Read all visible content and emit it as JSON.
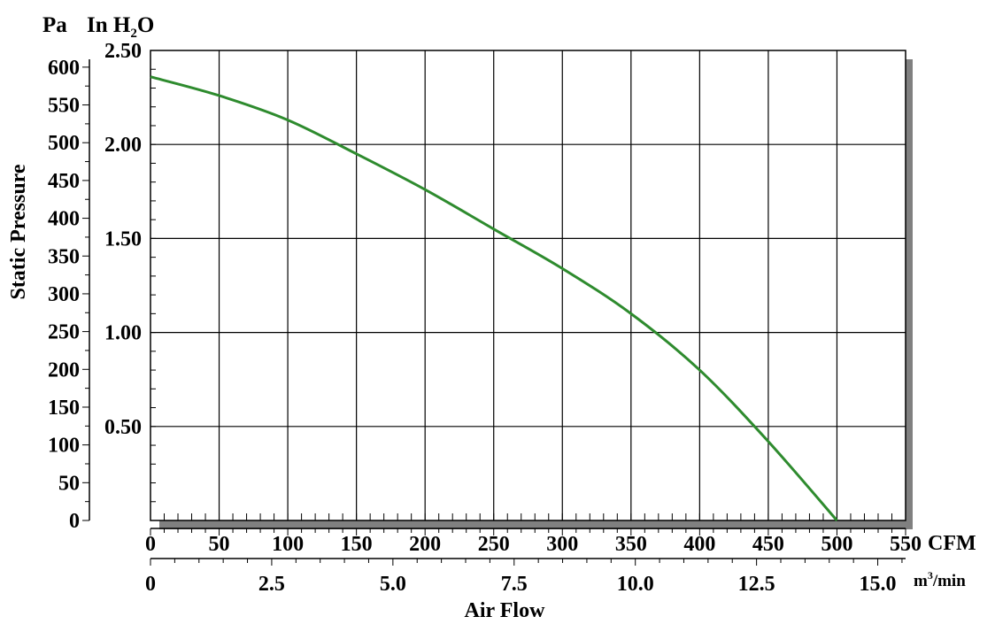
{
  "chart_data": {
    "type": "line",
    "y_units": {
      "pa": "Pa",
      "inh2o_prefix": "In H",
      "inh2o_sub": "2",
      "inh2o_suffix": "O"
    },
    "ylabel": "Static Pressure",
    "xlabel": "Air Flow",
    "x_units": {
      "cfm": "CFM",
      "m3_prefix": "m",
      "m3_sup": "3",
      "m3_suffix": "/min"
    },
    "y_pa_ticks": [
      "0",
      "50",
      "100",
      "150",
      "200",
      "250",
      "300",
      "350",
      "400",
      "450",
      "500",
      "550",
      "600"
    ],
    "y_inh2o_ticks": [
      "0.50",
      "1.00",
      "1.50",
      "2.00",
      "2.50"
    ],
    "x_cfm_ticks": [
      "0",
      "50",
      "100",
      "150",
      "200",
      "250",
      "300",
      "350",
      "400",
      "450",
      "500",
      "550"
    ],
    "x_m3_ticks": [
      "0",
      "2.5",
      "5.0",
      "7.5",
      "10.0",
      "12.5",
      "15.0"
    ],
    "x_range_cfm": [
      0,
      550
    ],
    "y_range_inh2o": [
      0,
      2.5
    ],
    "grid": true,
    "series": [
      {
        "color": "#2e8b2e",
        "x_cfm": [
          0,
          50,
          100,
          150,
          200,
          250,
          300,
          350,
          400,
          450,
          500
        ],
        "y_inh2o": [
          2.36,
          2.26,
          2.13,
          1.95,
          1.76,
          1.55,
          1.34,
          1.1,
          0.8,
          0.42,
          0.0
        ]
      }
    ]
  }
}
